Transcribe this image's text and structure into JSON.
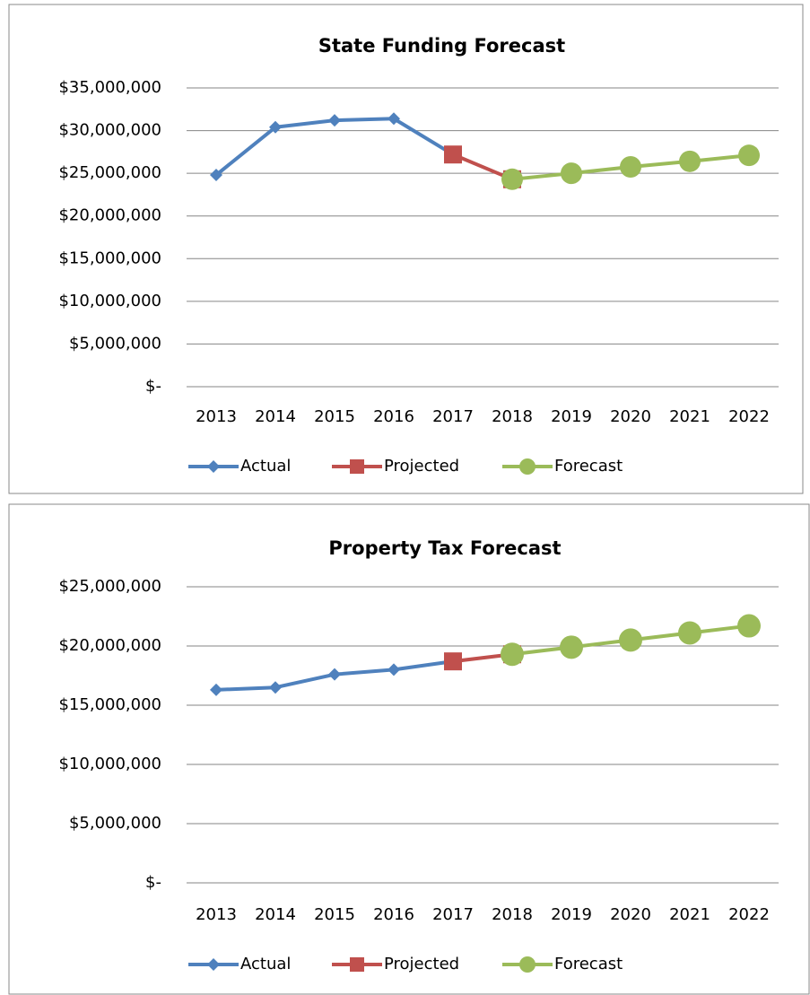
{
  "chart_data": [
    {
      "type": "line",
      "title": "State Funding Forecast",
      "categories": [
        "2013",
        "2014",
        "2015",
        "2016",
        "2017",
        "2018",
        "2019",
        "2020",
        "2021",
        "2022"
      ],
      "series": [
        {
          "name": "Actual",
          "color": "#4f81bd",
          "marker": "diamond",
          "values": [
            24800000,
            30400000,
            31200000,
            31400000,
            27200000,
            null,
            null,
            null,
            null,
            null
          ]
        },
        {
          "name": "Projected",
          "color": "#c0504d",
          "marker": "square",
          "values": [
            null,
            null,
            null,
            null,
            27200000,
            24300000,
            null,
            null,
            null,
            null
          ]
        },
        {
          "name": "Forecast",
          "color": "#9bbb59",
          "marker": "circle",
          "values": [
            null,
            null,
            null,
            null,
            null,
            24300000,
            25000000,
            25750000,
            26400000,
            27100000
          ]
        }
      ],
      "ylim": [
        0,
        35000000
      ],
      "yticks": [
        {
          "value": 0,
          "label": "$-"
        },
        {
          "value": 5000000,
          "label": "$5,000,000"
        },
        {
          "value": 10000000,
          "label": "$10,000,000"
        },
        {
          "value": 15000000,
          "label": "$15,000,000"
        },
        {
          "value": 20000000,
          "label": "$20,000,000"
        },
        {
          "value": 25000000,
          "label": "$25,000,000"
        },
        {
          "value": 30000000,
          "label": "$30,000,000"
        },
        {
          "value": 35000000,
          "label": "$35,000,000"
        }
      ],
      "grid": true,
      "legend": "bottom"
    },
    {
      "type": "line",
      "title": "Property Tax Forecast",
      "categories": [
        "2013",
        "2014",
        "2015",
        "2016",
        "2017",
        "2018",
        "2019",
        "2020",
        "2021",
        "2022"
      ],
      "series": [
        {
          "name": "Actual",
          "color": "#4f81bd",
          "marker": "diamond",
          "values": [
            16300000,
            16500000,
            17600000,
            18000000,
            18700000,
            null,
            null,
            null,
            null,
            null
          ]
        },
        {
          "name": "Projected",
          "color": "#c0504d",
          "marker": "square",
          "values": [
            null,
            null,
            null,
            null,
            18700000,
            19300000,
            null,
            null,
            null,
            null
          ]
        },
        {
          "name": "Forecast",
          "color": "#9bbb59",
          "marker": "circle",
          "values": [
            null,
            null,
            null,
            null,
            null,
            19300000,
            19900000,
            20500000,
            21100000,
            21700000
          ]
        }
      ],
      "ylim": [
        0,
        25000000
      ],
      "yticks": [
        {
          "value": 0,
          "label": "$-"
        },
        {
          "value": 5000000,
          "label": "$5,000,000"
        },
        {
          "value": 10000000,
          "label": "$10,000,000"
        },
        {
          "value": 15000000,
          "label": "$15,000,000"
        },
        {
          "value": 20000000,
          "label": "$20,000,000"
        },
        {
          "value": 25000000,
          "label": "$25,000,000"
        }
      ],
      "grid": true,
      "legend": "bottom"
    }
  ]
}
